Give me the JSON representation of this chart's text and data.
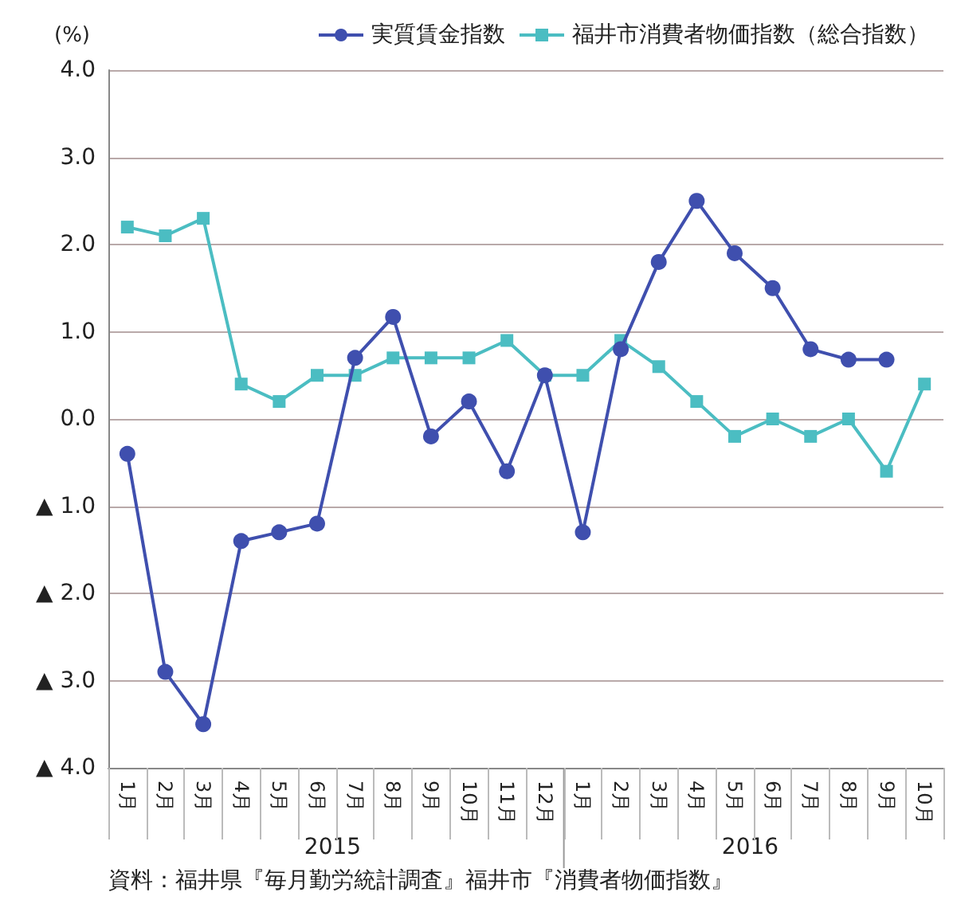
{
  "chart_data": {
    "type": "line",
    "ylabel": "(%)",
    "categories": [
      "1月",
      "2月",
      "3月",
      "4月",
      "5月",
      "6月",
      "7月",
      "8月",
      "9月",
      "10月",
      "11月",
      "12月",
      "1月",
      "2月",
      "3月",
      "4月",
      "5月",
      "6月",
      "7月",
      "8月",
      "9月",
      "10月"
    ],
    "series": [
      {
        "name": "実質賃金指数",
        "color": "#3f4fae",
        "marker": "circle",
        "values": [
          -0.4,
          -2.9,
          -3.5,
          -1.4,
          -1.3,
          -1.2,
          0.7,
          1.17,
          -0.2,
          0.2,
          -0.6,
          0.5,
          -1.3,
          0.8,
          1.8,
          2.5,
          1.9,
          1.5,
          0.8,
          0.68,
          0.68,
          null
        ]
      },
      {
        "name": "福井市消費者物価指数（総合指数）",
        "color": "#4bbdc2",
        "marker": "square",
        "values": [
          2.2,
          2.1,
          2.3,
          0.4,
          0.2,
          0.5,
          0.5,
          0.7,
          0.7,
          0.7,
          0.9,
          0.5,
          0.5,
          0.9,
          0.6,
          0.2,
          -0.2,
          0.0,
          -0.2,
          0.0,
          -0.6,
          0.4
        ]
      }
    ],
    "ylim": [
      -4,
      4
    ],
    "yticks": [
      {
        "value": -4,
        "label": "▲ 4.0"
      },
      {
        "value": -3,
        "label": "▲ 3.0"
      },
      {
        "value": -2,
        "label": "▲ 2.0"
      },
      {
        "value": -1,
        "label": "▲ 1.0"
      },
      {
        "value": 0,
        "label": "0.0"
      },
      {
        "value": 1,
        "label": "1.0"
      },
      {
        "value": 2,
        "label": "2.0"
      },
      {
        "value": 3,
        "label": "3.0"
      },
      {
        "value": 4,
        "label": "4.0"
      }
    ],
    "grid": "y",
    "legend": "top",
    "line_style": "solid",
    "annotations": [
      "2015",
      "2016",
      "資料：福井県『毎月勤労統計調査』福井市『消費者物価指数』"
    ]
  }
}
